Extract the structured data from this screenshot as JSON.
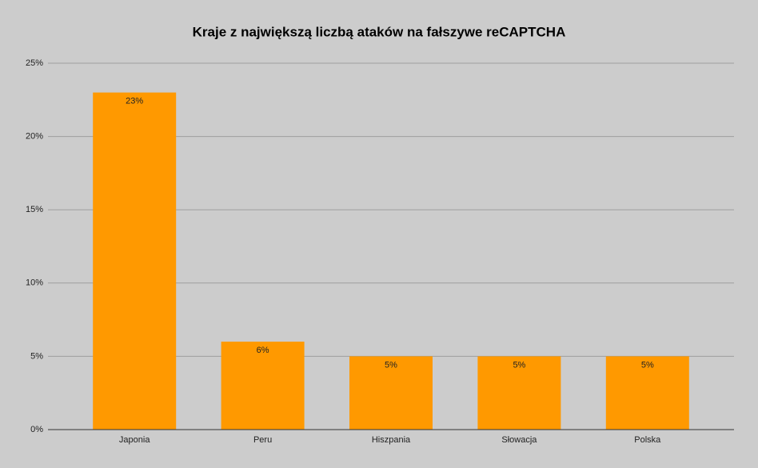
{
  "chart_data": {
    "type": "bar",
    "title": "Kraje z największą liczbą ataków na fałszywe reCAPTCHA",
    "categories": [
      "Japonia",
      "Peru",
      "Hiszpania",
      "Słowacja",
      "Polska"
    ],
    "values": [
      23,
      6,
      5,
      5,
      5
    ],
    "value_labels": [
      "23%",
      "6%",
      "5%",
      "5%",
      "5%"
    ],
    "color": "#ff9900",
    "ylim": [
      0,
      25
    ],
    "yticks": [
      {
        "value": 0,
        "label": "0%"
      },
      {
        "value": 5,
        "label": "5%"
      },
      {
        "value": 10,
        "label": "10%"
      },
      {
        "value": 15,
        "label": "15%"
      },
      {
        "value": 20,
        "label": "20%"
      },
      {
        "value": 25,
        "label": "25%"
      }
    ],
    "grid": true
  }
}
